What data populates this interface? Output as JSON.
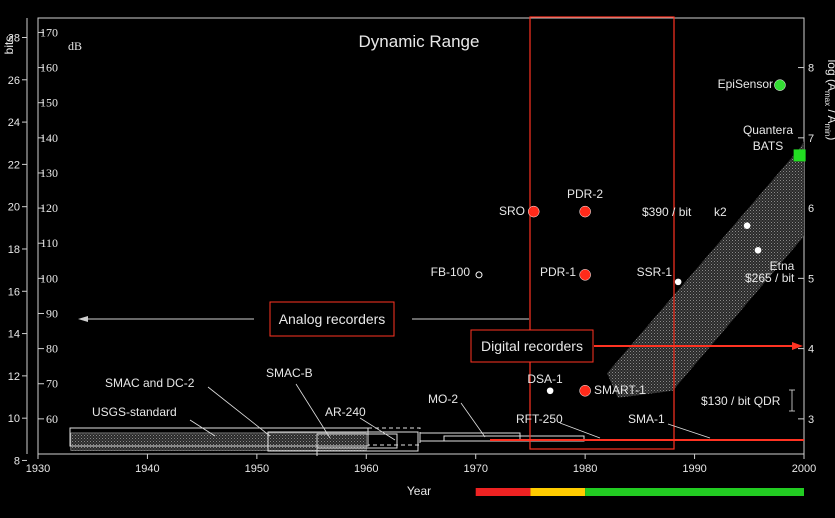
{
  "chart_data": {
    "type": "scatter",
    "title": "Dynamic Range",
    "xlabel": "Year",
    "xlim": [
      1930,
      2000
    ],
    "x_ticks": [
      "1930",
      "1940",
      "1950",
      "1960",
      "1970",
      "1980",
      "1990",
      "2000"
    ],
    "ylim_db": [
      50,
      174
    ],
    "y_left_bits_label": "bits",
    "y_left_bits_ticks": [
      "8",
      "10",
      "12",
      "14",
      "16",
      "18",
      "20",
      "22",
      "24",
      "26",
      "28"
    ],
    "y_left_db_label": "dB",
    "y_left_db_ticks": [
      "60",
      "70",
      "80",
      "90",
      "100",
      "110",
      "120",
      "130",
      "140",
      "150",
      "160",
      "170"
    ],
    "y_right_label": "log (A",
    "y_right_label_sub1": "max",
    "y_right_label_mid": " / A",
    "y_right_label_sub2": "min",
    "y_right_label_end": ")",
    "y_right_ticks": [
      "3",
      "4",
      "5",
      "6",
      "7",
      "8"
    ],
    "points": [
      {
        "label": "SRO",
        "year": 1975.3,
        "db": 119,
        "color": "#ff2a1a",
        "size": "large"
      },
      {
        "label": "PDR-2",
        "year": 1980.0,
        "db": 119,
        "color": "#ff2a1a",
        "size": "large"
      },
      {
        "label": "PDR-1",
        "year": 1980.0,
        "db": 101,
        "color": "#ff2a1a",
        "size": "large"
      },
      {
        "label": "SMART-1",
        "year": 1980.0,
        "db": 68,
        "color": "#ff2a1a",
        "size": "large"
      },
      {
        "label": "DSA-1",
        "year": 1976.8,
        "db": 68,
        "color": "#ffffff",
        "size": "small"
      },
      {
        "label": "FB-100",
        "year": 1970.3,
        "db": 101,
        "color": "#000000",
        "size": "hollow"
      },
      {
        "label": "SSR-1",
        "year": 1988.5,
        "db": 99,
        "color": "#ffffff",
        "size": "small"
      },
      {
        "label": "k2",
        "year": 1994.8,
        "db": 115,
        "color": "#ffffff",
        "size": "small"
      },
      {
        "label": "Etna",
        "year": 1995.8,
        "db": 108,
        "color": "#ffffff",
        "size": "small"
      },
      {
        "label": "EpiSensor",
        "year": 1997.8,
        "db": 155,
        "color": "#33dd33",
        "size": "large"
      },
      {
        "label": "Quantera BATS",
        "year": 1999.6,
        "db": 135,
        "color": "#22dd22",
        "size": "square"
      }
    ],
    "recorders": [
      {
        "label": "USGS-standard",
        "x": [
          1933,
          1960
        ]
      },
      {
        "label": "SMAC and DC-2",
        "x": [
          1951,
          1967
        ]
      },
      {
        "label": "SMAC-B",
        "x": [
          1955,
          1967
        ]
      },
      {
        "label": "AR-240",
        "x": [
          1960,
          1965
        ]
      },
      {
        "label": "MO-2",
        "x": [
          1965,
          1980
        ]
      },
      {
        "label": "RFT-250",
        "x": [
          1970,
          1980
        ]
      },
      {
        "label": "SMA-1",
        "x": [
          1975,
          2000
        ]
      }
    ],
    "annotations": {
      "analog": "Analog recorders",
      "digital": "Digital recorders",
      "cost_390": "$390 / bit",
      "cost_265": "$265 / bit",
      "cost_130": "$130 / bit QDR",
      "quantera_line1": "Quantera",
      "quantera_line2": "BATS",
      "etna": "Etna"
    },
    "timeline_colors": [
      "#ee2222",
      "#ffcc00",
      "#22cc22"
    ],
    "grid": false
  }
}
